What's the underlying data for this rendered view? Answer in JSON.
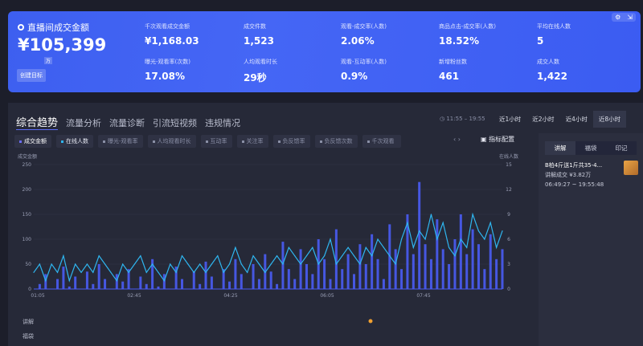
{
  "summary": {
    "title": "直播间成交金额",
    "amount": "¥105,399",
    "unit": "万",
    "goal_button": "创建目标",
    "metrics": [
      {
        "label": "千次观看成交金额",
        "value": "¥1,168.03"
      },
      {
        "label": "成交件数",
        "value": "1,523"
      },
      {
        "label": "观看-成交率(人数)",
        "value": "2.06%"
      },
      {
        "label": "商品点击-成交率(人数)",
        "value": "18.52%"
      },
      {
        "label": "平均在线人数",
        "value": "5"
      },
      {
        "label": "曝光-观看率(次数)",
        "value": "17.08%"
      },
      {
        "label": "人均观看时长",
        "value": "29秒"
      },
      {
        "label": "观看-互动率(人数)",
        "value": "0.9%"
      },
      {
        "label": "新增粉丝数",
        "value": "461"
      },
      {
        "label": "成交人数",
        "value": "1,422"
      }
    ]
  },
  "tabs": [
    "综合趋势",
    "流量分析",
    "流量诊断",
    "引流短视频",
    "违规情况"
  ],
  "time_range": "11:55 – 19:55",
  "range_buttons": [
    "近1小时",
    "近2小时",
    "近4小时",
    "近8小时"
  ],
  "chips": [
    "成交金额",
    "在线人数",
    "曝光-观看率",
    "人均观看时长",
    "互动率",
    "关注率",
    "负反馈率",
    "负反馈次数",
    "千次观看"
  ],
  "config_label": "指标配置",
  "side": {
    "tabs": [
      "讲解",
      "福袋",
      "印记"
    ],
    "item": {
      "title": "B柏4斤送1斤共35-4...",
      "sales": "讲解成交 ¥3.82万",
      "time": "06:49:27 ~ 19:55:48"
    }
  },
  "rows": [
    "讲解",
    "福袋"
  ],
  "colors": {
    "sales": "#4a5cf5",
    "online": "#2fb6f0",
    "accent": "#3d5ff0"
  },
  "chart_data": {
    "type": "line",
    "ylabel_left": "成交金额",
    "ylabel_right": "在线人数",
    "ylim_left": [
      0,
      250
    ],
    "ylim_right": [
      0,
      15
    ],
    "yticks_left": [
      "0",
      "50",
      "100",
      "150",
      "200",
      "250"
    ],
    "yticks_right": [
      "0",
      "3",
      "6",
      "9",
      "12",
      "15"
    ],
    "xticks": [
      "01:05",
      "02:45",
      "04:25",
      "06:05",
      "07:45"
    ],
    "grid": true,
    "series": [
      {
        "name": "成交金额",
        "axis": "left",
        "values": [
          0,
          10,
          30,
          0,
          20,
          45,
          5,
          25,
          0,
          35,
          10,
          50,
          20,
          0,
          30,
          15,
          40,
          0,
          25,
          10,
          60,
          5,
          30,
          0,
          45,
          20,
          0,
          35,
          10,
          55,
          25,
          0,
          40,
          15,
          60,
          30,
          0,
          50,
          20,
          70,
          35,
          10,
          95,
          40,
          20,
          80,
          50,
          30,
          100,
          60,
          20,
          120,
          40,
          70,
          30,
          90,
          50,
          110,
          60,
          20,
          130,
          80,
          40,
          150,
          70,
          215,
          90,
          60,
          140,
          80,
          50,
          100,
          150,
          70,
          120,
          90,
          40,
          110,
          60,
          80
        ]
      },
      {
        "name": "在线人数",
        "axis": "right",
        "values": [
          2,
          3,
          1,
          3,
          2,
          4,
          1,
          3,
          2,
          3,
          2,
          4,
          3,
          2,
          1,
          3,
          2,
          3,
          4,
          2,
          3,
          2,
          1,
          3,
          2,
          4,
          3,
          2,
          3,
          2,
          3,
          4,
          2,
          3,
          5,
          3,
          2,
          4,
          3,
          2,
          3,
          4,
          3,
          5,
          4,
          3,
          4,
          5,
          3,
          4,
          6,
          3,
          4,
          5,
          4,
          3,
          5,
          4,
          6,
          5,
          4,
          3,
          6,
          8,
          5,
          7,
          6,
          9,
          6,
          8,
          5,
          4,
          6,
          5,
          9,
          7,
          6,
          8,
          5,
          7
        ]
      }
    ]
  }
}
